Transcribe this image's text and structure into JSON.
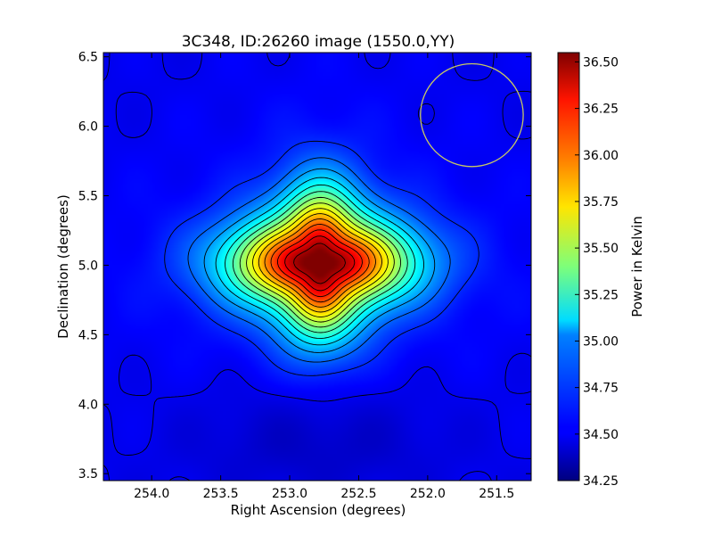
{
  "chart_data": {
    "type": "heatmap",
    "title": "3C348, ID:26260 image (1550.0,YY)",
    "xlabel": "Right Ascension (degrees)",
    "ylabel": "Declination (degrees)",
    "colorbar_label": "Power in Kelvin",
    "xlim": [
      254.35,
      251.25
    ],
    "ylim": [
      3.45,
      6.53
    ],
    "x_ticks": [
      {
        "value": 254.0,
        "label": "254.0"
      },
      {
        "value": 253.5,
        "label": "253.5"
      },
      {
        "value": 253.0,
        "label": "253.0"
      },
      {
        "value": 252.5,
        "label": "252.5"
      },
      {
        "value": 252.0,
        "label": "252.0"
      },
      {
        "value": 251.5,
        "label": "251.5"
      }
    ],
    "y_ticks": [
      {
        "value": 3.5,
        "label": "3.5"
      },
      {
        "value": 4.0,
        "label": "4.0"
      },
      {
        "value": 4.5,
        "label": "4.5"
      },
      {
        "value": 5.0,
        "label": "5.0"
      },
      {
        "value": 5.5,
        "label": "5.5"
      },
      {
        "value": 6.0,
        "label": "6.0"
      },
      {
        "value": 6.5,
        "label": "6.5"
      }
    ],
    "colorbar_range": [
      34.25,
      36.55
    ],
    "colorbar_ticks": [
      {
        "value": 34.25,
        "label": "34.25"
      },
      {
        "value": 34.5,
        "label": "34.50"
      },
      {
        "value": 34.75,
        "label": "34.75"
      },
      {
        "value": 35.0,
        "label": "35.00"
      },
      {
        "value": 35.25,
        "label": "35.25"
      },
      {
        "value": 35.5,
        "label": "35.50"
      },
      {
        "value": 35.75,
        "label": "35.75"
      },
      {
        "value": 36.0,
        "label": "36.00"
      },
      {
        "value": 36.25,
        "label": "36.25"
      },
      {
        "value": 36.5,
        "label": "36.50"
      }
    ],
    "colormap": "jet",
    "peak": {
      "ra": 252.78,
      "dec": 5.02,
      "value": 36.55
    },
    "background_value": 34.5,
    "contour_levels": [
      34.5,
      34.63,
      34.76,
      34.89,
      35.02,
      35.15,
      35.28,
      35.41,
      35.54,
      35.67,
      35.8,
      35.93,
      36.06,
      36.19,
      36.32,
      36.45
    ],
    "beam": {
      "ra": 251.68,
      "dec": 6.08,
      "radius_deg": 0.37,
      "color": "#c8c864"
    }
  }
}
